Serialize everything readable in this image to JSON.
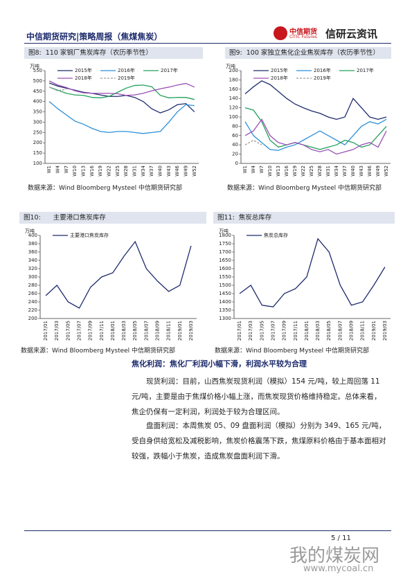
{
  "header": {
    "left": "中信期货研究|策略周报（焦煤焦炭）",
    "logo_cn": "中信期货",
    "logo_en": "CITIC Futures",
    "brand": "信研云资讯"
  },
  "chart_data": [
    {
      "type": "line",
      "figure_label": "图8:",
      "title": "110 家钢厂焦炭库存（农历季节性）",
      "y_unit": "万吨",
      "source": "数据来源：Wind Bloomberg Mysteel 中信期货研究部",
      "categories": [
        "W1",
        "W4",
        "W7",
        "W10",
        "W13",
        "W16",
        "W19",
        "W22",
        "W25",
        "W28",
        "W31",
        "W34",
        "W37",
        "W40",
        "W43",
        "W46",
        "W49",
        "W52"
      ],
      "ylim": [
        100,
        550
      ],
      "yticks": [
        100,
        150,
        200,
        250,
        300,
        350,
        400,
        450,
        500,
        550
      ],
      "series": [
        {
          "name": "2015年",
          "color": "#1c2a6b",
          "values": [
            490,
            475,
            465,
            455,
            445,
            440,
            432,
            425,
            425,
            430,
            420,
            400,
            365,
            345,
            360,
            385,
            390,
            350
          ]
        },
        {
          "name": "2016年",
          "color": "#2b8fd9",
          "values": [
            400,
            365,
            335,
            305,
            290,
            270,
            255,
            250,
            255,
            255,
            250,
            245,
            250,
            255,
            300,
            350,
            385,
            380
          ]
        },
        {
          "name": "2017年",
          "color": "#22a05a",
          "values": [
            470,
            455,
            440,
            432,
            430,
            420,
            418,
            425,
            445,
            465,
            478,
            480,
            472,
            430,
            418,
            420,
            420,
            410
          ]
        },
        {
          "name": "2018年",
          "color": "#9a4fb5",
          "values": [
            500,
            480,
            468,
            452,
            442,
            440,
            440,
            440,
            438,
            430,
            432,
            440,
            452,
            462,
            470,
            480,
            488,
            470
          ]
        },
        {
          "name": "2019年",
          "color": "#999999",
          "style": "dashed",
          "values": [
            470,
            452,
            460,
            null,
            null,
            null,
            null,
            null,
            null,
            null,
            null,
            null,
            null,
            null,
            null,
            null,
            null,
            null
          ]
        }
      ]
    },
    {
      "type": "line",
      "figure_label": "图9:",
      "title": "100 家独立焦化企业焦炭库存（农历季节性）",
      "y_unit": "万吨",
      "source": "数据来源：Wind Bloomberg Mysteel 中信期货研究部",
      "categories": [
        "W1",
        "W4",
        "W7",
        "W10",
        "W13",
        "W16",
        "W19",
        "W22",
        "W25",
        "W28",
        "W31",
        "W34",
        "W37",
        "W40",
        "W43",
        "W46",
        "W49",
        "W52"
      ],
      "ylim": [
        0,
        200
      ],
      "yticks": [
        0,
        20,
        40,
        60,
        80,
        100,
        120,
        140,
        160,
        180,
        200
      ],
      "series": [
        {
          "name": "2015年",
          "color": "#1c2a6b",
          "values": [
            150,
            165,
            178,
            170,
            155,
            140,
            128,
            120,
            113,
            108,
            100,
            95,
            100,
            140,
            120,
            100,
            95,
            100
          ]
        },
        {
          "name": "2016年",
          "color": "#2b8fd9",
          "values": [
            90,
            60,
            45,
            30,
            28,
            35,
            40,
            50,
            60,
            70,
            60,
            50,
            40,
            60,
            80,
            90,
            85,
            95
          ]
        },
        {
          "name": "2017年",
          "color": "#22a05a",
          "values": [
            120,
            115,
            90,
            50,
            35,
            40,
            45,
            40,
            35,
            30,
            35,
            40,
            50,
            45,
            35,
            40,
            60,
            80
          ]
        },
        {
          "name": "2018年",
          "color": "#9a4fb5",
          "values": [
            60,
            70,
            95,
            60,
            45,
            40,
            45,
            40,
            30,
            25,
            30,
            20,
            25,
            30,
            40,
            45,
            35,
            70
          ]
        },
        {
          "name": "2019年",
          "color": "#999999",
          "style": "dashed",
          "values": [
            40,
            50,
            40,
            null,
            null,
            null,
            null,
            null,
            null,
            null,
            null,
            null,
            null,
            null,
            null,
            null,
            null,
            null
          ]
        }
      ]
    },
    {
      "type": "line",
      "figure_label": "图10:",
      "title": "主要港口焦炭库存",
      "y_unit": "万吨",
      "source": "数据来源：Wind Bloomberg Mysteel 中信期货研究部",
      "categories": [
        "2017/01",
        "2017/03",
        "2017/05",
        "2017/07",
        "2017/09",
        "2017/11",
        "2018/01",
        "2018/03",
        "2018/05",
        "2018/07",
        "2018/09",
        "2018/11",
        "2019/01",
        "2019/03"
      ],
      "ylim": [
        200,
        400
      ],
      "yticks": [
        200,
        220,
        240,
        260,
        280,
        300,
        320,
        340,
        360,
        380,
        400
      ],
      "series": [
        {
          "name": "主要港口焦炭库存",
          "color": "#1c2a6b",
          "values": [
            255,
            280,
            240,
            225,
            275,
            300,
            310,
            350,
            385,
            320,
            290,
            265,
            280,
            375
          ]
        }
      ]
    },
    {
      "type": "line",
      "figure_label": "图11:",
      "title": "焦炭总库存",
      "y_unit": "万吨",
      "source": "数据来源：Wind Bloomberg Mysteel 中信期货研究部",
      "categories": [
        "2017/01",
        "2017/03",
        "2017/05",
        "2017/07",
        "2017/09",
        "2017/11",
        "2018/01",
        "2018/03",
        "2018/05",
        "2018/07",
        "2018/09",
        "2018/11",
        "2019/01",
        "2019/03"
      ],
      "ylim": [
        1300,
        1800
      ],
      "yticks": [
        1300,
        1350,
        1400,
        1450,
        1500,
        1550,
        1600,
        1650,
        1700,
        1750,
        1800
      ],
      "series": [
        {
          "name": "焦炭总库存",
          "color": "#1c2a6b",
          "values": [
            1450,
            1500,
            1380,
            1370,
            1450,
            1480,
            1550,
            1780,
            1700,
            1500,
            1380,
            1400,
            1500,
            1610
          ]
        }
      ]
    }
  ],
  "body": {
    "heading": "焦化利润：焦化厂利润小幅下滑，利润水平较为合理",
    "paragraphs": [
      "现货利润：目前，山西焦炭现货利润（模拟）154 元/吨，较上周回落 11 元/吨，主要是由于焦煤价格小幅上涨，而焦炭现货价格维持稳定。总体来看，焦企仍保有一定利润，利润处于较为合理区间。",
      "盘面利润：本周焦炭 05、09 盘面利润（模拟）分别为 349、165 元/吨，受自身供给宽松及减税影响，焦炭价格震荡下跌，焦煤原料价格由于基本面相对较强，跌幅小于焦炭，造成焦炭盘面利润下滑。"
    ]
  },
  "footer": {
    "page": "5 / 11",
    "watermark": "我的煤炭网",
    "watermark_url": "www.mycoal.cn"
  }
}
